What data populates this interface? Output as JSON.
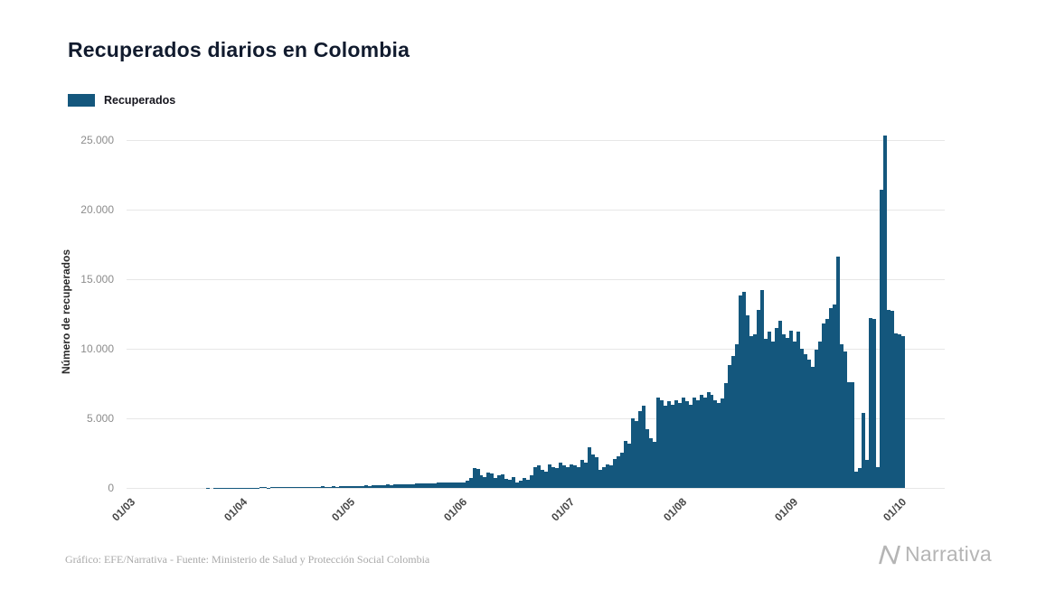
{
  "title": "Recuperados diarios en Colombia",
  "legend": {
    "label": "Recuperados",
    "color": "#14577d"
  },
  "footer": {
    "credit": "Gráfico: EFE/Narrativa - Fuente: Ministerio de Salud y Protección Social Colombia",
    "brand": "Narrativa"
  },
  "colors": {
    "bar": "#14577d",
    "grid": "#e7e7e7",
    "brand_text": "#b5b5b5"
  },
  "chart_data": {
    "type": "bar",
    "title": "Recuperados diarios en Colombia",
    "xlabel": "",
    "ylabel": "Número de recuperados",
    "x_tick_labels": [
      "01/03",
      "01/04",
      "01/05",
      "01/06",
      "01/07",
      "01/08",
      "01/09",
      "01/10"
    ],
    "x_tick_day_index": [
      0,
      31,
      61,
      92,
      122,
      153,
      184,
      214
    ],
    "y_ticks": [
      0,
      5000,
      10000,
      15000,
      20000,
      25000
    ],
    "y_tick_labels": [
      "0",
      "5.000",
      "10.000",
      "15.000",
      "20.000",
      "25.000"
    ],
    "ylim": [
      0,
      25300
    ],
    "grid": "horizontal",
    "legend_position": "top-left",
    "bar_color": "#14577d",
    "series": [
      {
        "name": "Recuperados",
        "values": [
          0,
          0,
          0,
          0,
          0,
          0,
          0,
          0,
          0,
          0,
          1,
          0,
          1,
          2,
          1,
          3,
          2,
          5,
          3,
          4,
          6,
          5,
          8,
          10,
          9,
          12,
          15,
          10,
          14,
          18,
          20,
          15,
          25,
          30,
          20,
          35,
          40,
          30,
          45,
          50,
          40,
          60,
          55,
          70,
          50,
          65,
          80,
          60,
          75,
          90,
          70,
          85,
          100,
          80,
          95,
          110,
          90,
          105,
          120,
          100,
          115,
          120,
          150,
          130,
          170,
          160,
          190,
          180,
          210,
          200,
          230,
          220,
          250,
          240,
          270,
          260,
          290,
          280,
          310,
          300,
          330,
          320,
          350,
          340,
          370,
          360,
          390,
          380,
          400,
          390,
          410,
          400,
          500,
          700,
          1400,
          1350,
          900,
          800,
          1100,
          1050,
          700,
          900,
          1000,
          650,
          600,
          800,
          400,
          500,
          700,
          600,
          900,
          1500,
          1600,
          1300,
          1200,
          1700,
          1500,
          1400,
          1800,
          1600,
          1500,
          1700,
          1600,
          1500,
          2000,
          1800,
          2900,
          2400,
          2200,
          1300,
          1500,
          1700,
          1600,
          2100,
          2300,
          2500,
          3400,
          3200,
          5000,
          4800,
          5500,
          5900,
          4200,
          3600,
          3300,
          6500,
          6300,
          5900,
          6200,
          6000,
          6300,
          6100,
          6500,
          6200,
          6000,
          6500,
          6300,
          6700,
          6500,
          6900,
          6700,
          6300,
          6100,
          6400,
          7500,
          8800,
          9500,
          10300,
          13800,
          14100,
          12400,
          10900,
          11000,
          12800,
          14200,
          10700,
          11200,
          10500,
          11500,
          12000,
          11000,
          10800,
          11300,
          10500,
          11200,
          10000,
          9600,
          9200,
          8700,
          9900,
          10500,
          11800,
          12100,
          12900,
          13200,
          16600,
          10300,
          9800,
          7600,
          7600,
          1200,
          1400,
          5400,
          2000,
          12200,
          12100,
          1500,
          21400,
          25300,
          12800,
          12700,
          11100,
          11000,
          10900
        ]
      }
    ]
  }
}
